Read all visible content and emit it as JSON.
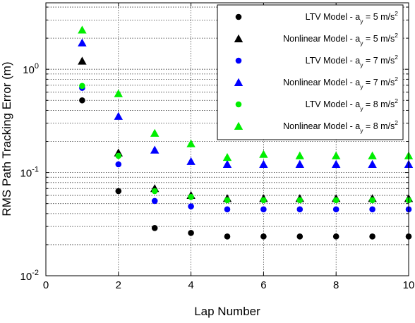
{
  "chart_data": {
    "type": "scatter",
    "title": "",
    "xlabel": "Lap Number",
    "ylabel": "RMS Path Tracking Error (m)",
    "xlim": [
      0,
      10
    ],
    "ylim": [
      0.01,
      4.4
    ],
    "y_scale": "log",
    "grid": true,
    "legend_position": "top-right",
    "x_ticks": [
      "0",
      "2",
      "4",
      "6",
      "8",
      "10"
    ],
    "y_ticks": [
      {
        "base": "10",
        "exp": "-2",
        "value": 0.01
      },
      {
        "base": "10",
        "exp": "-1",
        "value": 0.1
      },
      {
        "base": "10",
        "exp": "0",
        "value": 1
      }
    ],
    "series": [
      {
        "name": "LTV Model - a_y = 5 m/s^2",
        "legend": {
          "pre": "LTV Model - a",
          "sub": "y",
          "mid": " = 5 m/s",
          "sup": "2"
        },
        "color": "#000000",
        "marker": "circle",
        "x": [
          1,
          2,
          3,
          4,
          5,
          6,
          7,
          8,
          9,
          10
        ],
        "values": [
          0.5,
          0.066,
          0.029,
          0.026,
          0.024,
          0.024,
          0.024,
          0.024,
          0.024,
          0.024
        ]
      },
      {
        "name": "Nonlinear Model - a_y = 5 m/s^2",
        "legend": {
          "pre": "Nonlinear Model - a",
          "sub": "y",
          "mid": " = 5 m/s",
          "sup": "2"
        },
        "color": "#000000",
        "marker": "triangle",
        "x": [
          1,
          2,
          3,
          4,
          5,
          6,
          7,
          8,
          9,
          10
        ],
        "values": [
          1.2,
          0.155,
          0.07,
          0.06,
          0.056,
          0.056,
          0.056,
          0.056,
          0.056,
          0.056
        ]
      },
      {
        "name": "LTV Model - a_y = 7 m/s^2",
        "legend": {
          "pre": "LTV Model - a",
          "sub": "y",
          "mid": " = 7 m/s",
          "sup": "2"
        },
        "color": "#0000ff",
        "marker": "circle",
        "x": [
          1,
          2,
          3,
          4,
          5,
          6,
          7,
          8,
          9,
          10
        ],
        "values": [
          0.66,
          0.12,
          0.053,
          0.047,
          0.044,
          0.044,
          0.044,
          0.044,
          0.044,
          0.044
        ]
      },
      {
        "name": "Nonlinear Model - a_y = 7 m/s^2",
        "legend": {
          "pre": "Nonlinear Model - a",
          "sub": "y",
          "mid": " = 7 m/s",
          "sup": "2"
        },
        "color": "#0000ff",
        "marker": "triangle",
        "x": [
          1,
          2,
          3,
          4,
          5,
          6,
          7,
          8,
          9,
          10
        ],
        "values": [
          1.8,
          0.35,
          0.165,
          0.128,
          0.12,
          0.12,
          0.12,
          0.12,
          0.12,
          0.12
        ]
      },
      {
        "name": "LTV Model - a_y = 8 m/s^2",
        "legend": {
          "pre": "LTV Model - a",
          "sub": "y",
          "mid": " = 8 m/s",
          "sup": "2"
        },
        "color": "#00ee00",
        "marker": "circle",
        "x": [
          1,
          2,
          3,
          4,
          5,
          6,
          7,
          8,
          9,
          10
        ],
        "values": [
          0.69,
          0.145,
          0.066,
          0.058,
          0.054,
          0.054,
          0.054,
          0.054,
          0.054,
          0.054
        ]
      },
      {
        "name": "Nonlinear Model - a_y = 8 m/s^2",
        "legend": {
          "pre": "Nonlinear Model - a",
          "sub": "y",
          "mid": " = 8 m/s",
          "sup": "2"
        },
        "color": "#00ee00",
        "marker": "triangle",
        "x": [
          1,
          2,
          3,
          4,
          5,
          6,
          7,
          8,
          9,
          10
        ],
        "values": [
          2.4,
          0.58,
          0.24,
          0.19,
          0.14,
          0.15,
          0.145,
          0.145,
          0.145,
          0.145
        ]
      }
    ]
  }
}
